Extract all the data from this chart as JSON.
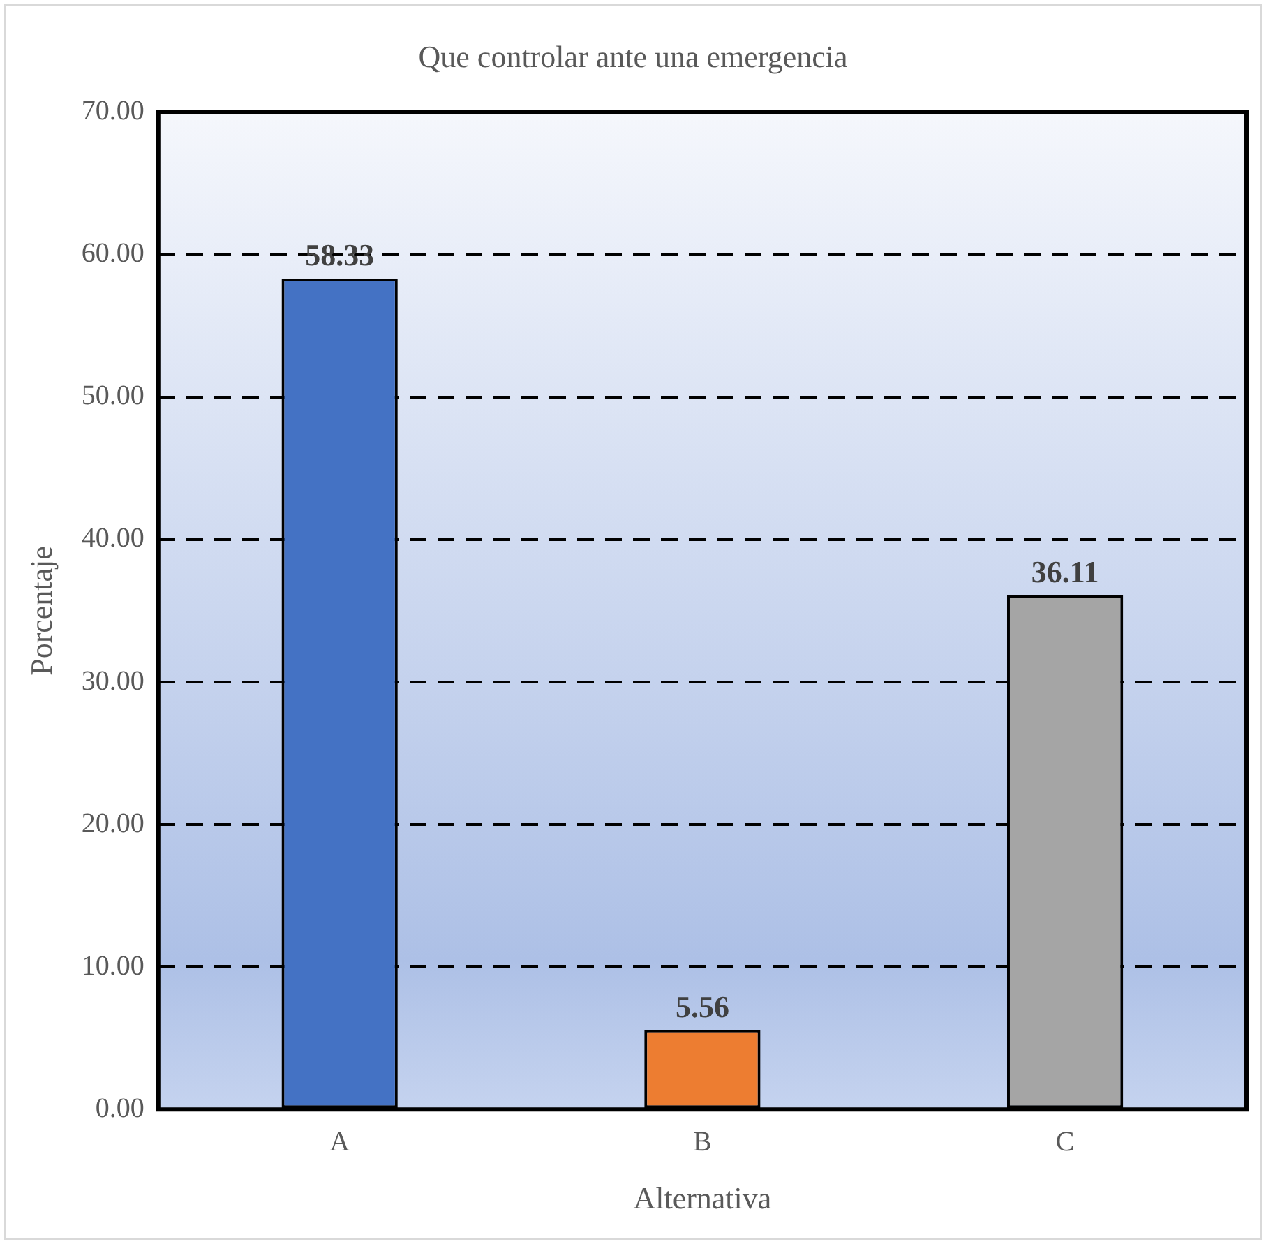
{
  "chart_data": {
    "type": "bar",
    "title": "Que controlar ante una emergencia",
    "xlabel": "Alternativa",
    "ylabel": "Porcentaje",
    "categories": [
      "A",
      "B",
      "C"
    ],
    "values": [
      58.33,
      5.56,
      36.11
    ],
    "colors": [
      "#4472c4",
      "#ed7d31",
      "#a5a5a5"
    ],
    "ylim": [
      0,
      70
    ],
    "yticks": [
      {
        "value": 0,
        "label": "0.00"
      },
      {
        "value": 10,
        "label": "10.00"
      },
      {
        "value": 20,
        "label": "20.00"
      },
      {
        "value": 30,
        "label": "30.00"
      },
      {
        "value": 40,
        "label": "40.00"
      },
      {
        "value": 50,
        "label": "50.00"
      },
      {
        "value": 60,
        "label": "60.00"
      },
      {
        "value": 70,
        "label": "70.00"
      }
    ],
    "grid": "y",
    "line_style": "dashed",
    "legend": false,
    "data_labels": true
  }
}
